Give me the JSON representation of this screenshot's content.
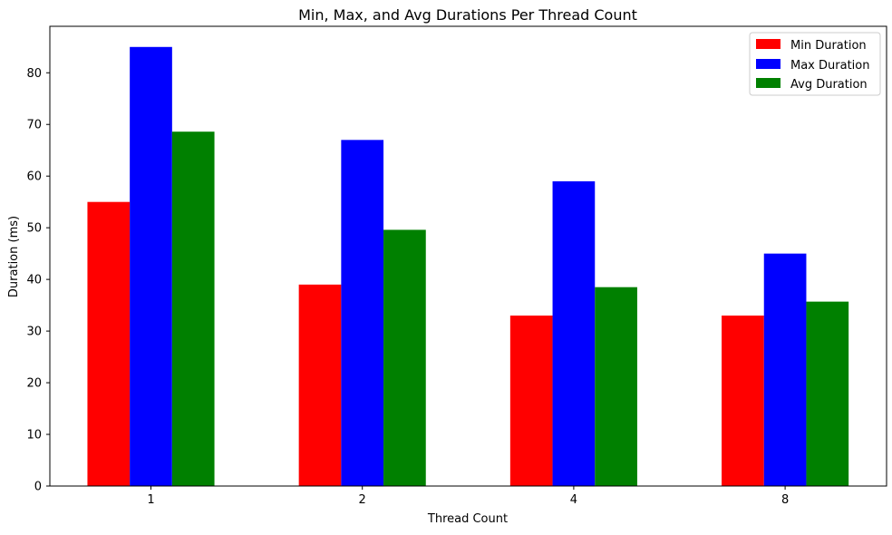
{
  "chart_data": {
    "type": "bar",
    "title": "Min, Max, and Avg Durations Per Thread Count",
    "xlabel": "Thread Count",
    "ylabel": "Duration (ms)",
    "categories": [
      "1",
      "2",
      "4",
      "8"
    ],
    "ylim": [
      0,
      89
    ],
    "yticks": [
      0,
      10,
      20,
      30,
      40,
      50,
      60,
      70,
      80
    ],
    "grid": false,
    "legend_position": "top-right",
    "series": [
      {
        "name": "Min Duration",
        "color": "#ff0000",
        "values": [
          55,
          39,
          33,
          33
        ]
      },
      {
        "name": "Max Duration",
        "color": "#0000ff",
        "values": [
          85,
          67,
          59,
          45
        ]
      },
      {
        "name": "Avg Duration",
        "color": "#008000",
        "values": [
          68.6,
          49.6,
          38.5,
          35.7
        ]
      }
    ]
  }
}
